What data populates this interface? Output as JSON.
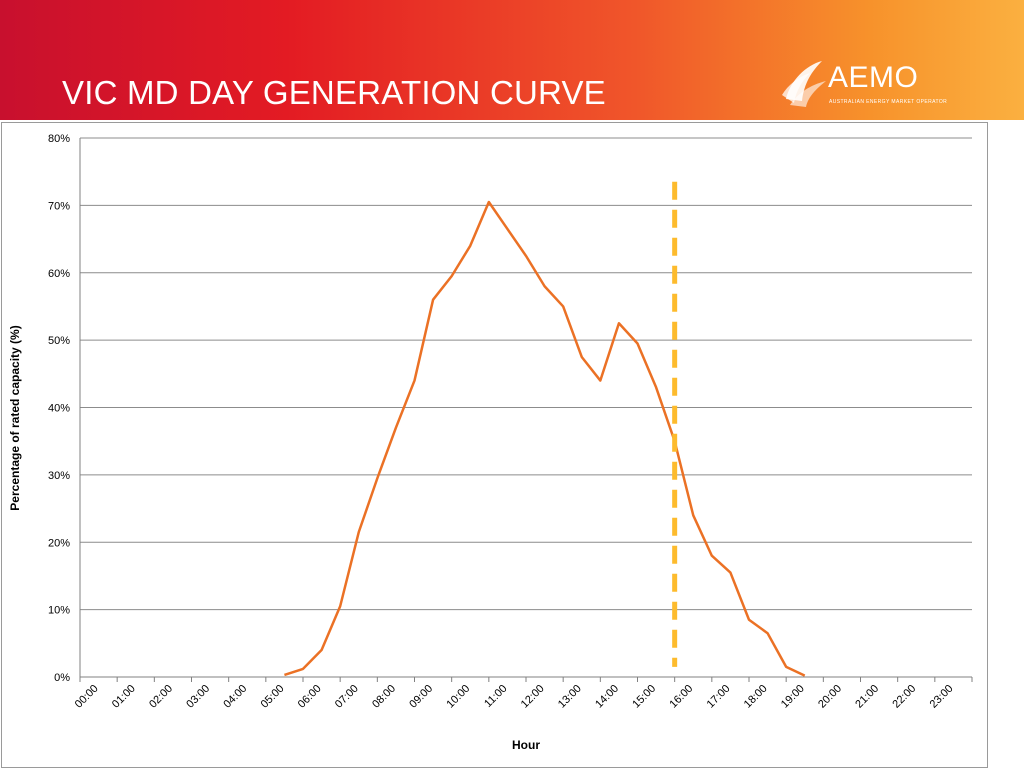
{
  "header": {
    "title": "VIC MD DAY GENERATION CURVE",
    "logo_text": "AEMO",
    "logo_subtitle": "AUSTRALIAN ENERGY MARKET OPERATOR"
  },
  "colors": {
    "series_line": "#eb7125",
    "marker_line": "#fdbb2d",
    "grid": "#8c8c8c"
  },
  "chart_data": {
    "type": "line",
    "title": "",
    "xlabel": "Hour",
    "ylabel": "Percentage of rated capacity (%)",
    "ylim": [
      0,
      80
    ],
    "yticks": [
      "0%",
      "10%",
      "20%",
      "30%",
      "40%",
      "50%",
      "60%",
      "70%",
      "80%"
    ],
    "categories": [
      "00:00",
      "01:00",
      "02:00",
      "03:00",
      "04:00",
      "05:00",
      "06:00",
      "07:00",
      "08:00",
      "09:00",
      "10:00",
      "11:00",
      "12:00",
      "13:00",
      "14:00",
      "15:00",
      "16:00",
      "17:00",
      "18:00",
      "19:00",
      "20:00",
      "21:00",
      "22:00",
      "23:00"
    ],
    "grid": true,
    "series": [
      {
        "x": [
          5.5,
          6.0,
          6.5,
          7.0,
          7.5,
          8.0,
          8.5,
          9.0,
          9.5,
          10.0,
          10.5,
          11.0,
          11.5,
          12.0,
          12.5,
          13.0,
          13.5,
          14.0,
          14.5,
          15.0,
          15.5,
          16.0,
          16.5,
          17.0,
          17.5,
          18.0,
          18.5,
          19.0,
          19.5
        ],
        "values": [
          0.3,
          1.2,
          4.0,
          10.5,
          21.5,
          29.5,
          37.0,
          44.0,
          56.0,
          59.5,
          64.0,
          70.5,
          66.5,
          62.5,
          58.0,
          55.0,
          47.5,
          44.0,
          52.5,
          49.5,
          43.0,
          35.0,
          24.0,
          18.0,
          15.5,
          8.5,
          6.5,
          1.5,
          0.2
        ]
      }
    ],
    "vertical_marker": {
      "x": 16.0,
      "y_range": [
        1.5,
        73.5
      ],
      "style": "dashed"
    }
  }
}
